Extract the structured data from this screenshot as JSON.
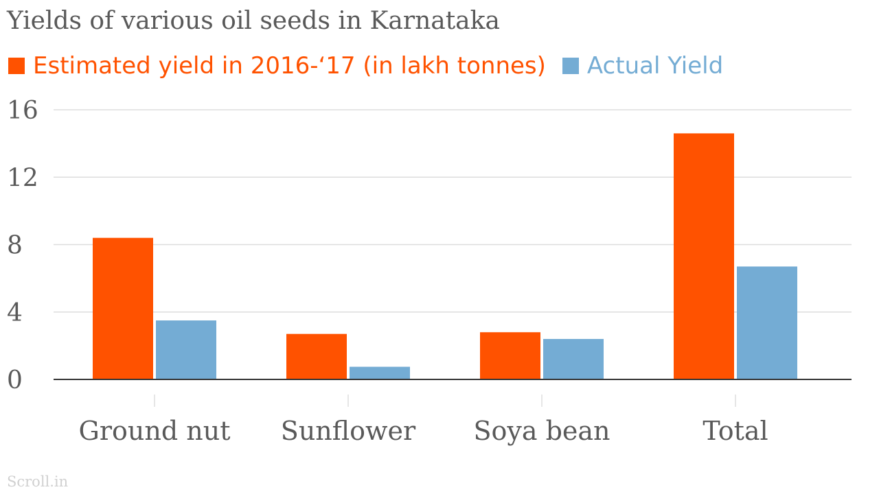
{
  "chart_data": {
    "type": "bar",
    "title": "Yields of various oil seeds in Karnataka",
    "categories": [
      "Ground nut",
      "Sunflower",
      "Soya bean",
      "Total"
    ],
    "series": [
      {
        "name": "Estimated yield in 2016-‘17 (in lakh tonnes)",
        "color": "#ff5200",
        "values": [
          8.4,
          2.7,
          2.8,
          14.6
        ]
      },
      {
        "name": "Actual Yield",
        "color": "#74acd4",
        "values": [
          3.5,
          0.75,
          2.4,
          6.7
        ]
      }
    ],
    "yticks": [
      "0",
      "4",
      "8",
      "12",
      "16"
    ],
    "ylim": [
      0,
      16
    ],
    "grid": true,
    "legend_position": "top-left"
  },
  "credit": "Scroll.in",
  "colors": {
    "gridline": "#dddddd",
    "axis": "#333333",
    "text": "#595959"
  }
}
